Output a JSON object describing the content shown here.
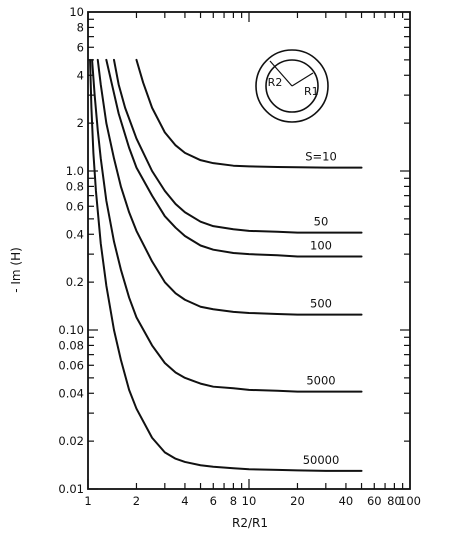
{
  "chart_data": {
    "type": "line",
    "title": "",
    "xlabel": "R2/R1",
    "ylabel": "- Im (H)",
    "x_scale": "log",
    "y_scale": "log",
    "xlim": [
      1,
      100
    ],
    "ylim": [
      0.01,
      10
    ],
    "grid": false,
    "x_ticks": [
      {
        "value": 1,
        "label": "1"
      },
      {
        "value": 2,
        "label": "2"
      },
      {
        "value": 4,
        "label": "4"
      },
      {
        "value": 6,
        "label": "6"
      },
      {
        "value": 8,
        "label": "8"
      },
      {
        "value": 10,
        "label": "10"
      },
      {
        "value": 20,
        "label": "20"
      },
      {
        "value": 40,
        "label": "40"
      },
      {
        "value": 60,
        "label": "60"
      },
      {
        "value": 80,
        "label": "80"
      },
      {
        "value": 100,
        "label": "100"
      }
    ],
    "y_ticks": [
      {
        "value": 0.01,
        "label": "0.01"
      },
      {
        "value": 0.02,
        "label": "0.02"
      },
      {
        "value": 0.04,
        "label": "0.04"
      },
      {
        "value": 0.06,
        "label": "0.06"
      },
      {
        "value": 0.08,
        "label": "0.08"
      },
      {
        "value": 0.1,
        "label": "0.10"
      },
      {
        "value": 0.2,
        "label": "0.2"
      },
      {
        "value": 0.4,
        "label": "0.4"
      },
      {
        "value": 0.6,
        "label": "0.6"
      },
      {
        "value": 0.8,
        "label": "0.8"
      },
      {
        "value": 1,
        "label": "1.0"
      },
      {
        "value": 2,
        "label": "2"
      },
      {
        "value": 4,
        "label": "4"
      },
      {
        "value": 6,
        "label": "6"
      },
      {
        "value": 8,
        "label": "8"
      },
      {
        "value": 10,
        "label": "10"
      }
    ],
    "series": [
      {
        "name": "S=10",
        "label": "S=10",
        "x": [
          2.0,
          2.2,
          2.5,
          3.0,
          3.5,
          4.0,
          5.0,
          6.0,
          8.0,
          10.0,
          15.0,
          20.0,
          30.0,
          50.0
        ],
        "y": [
          5.0,
          3.6,
          2.5,
          1.75,
          1.45,
          1.3,
          1.17,
          1.12,
          1.08,
          1.07,
          1.06,
          1.055,
          1.05,
          1.05
        ]
      },
      {
        "name": "50",
        "label": "50",
        "x": [
          1.45,
          1.55,
          1.7,
          2.0,
          2.5,
          3.0,
          3.5,
          4.0,
          5.0,
          6.0,
          8.0,
          10.0,
          15.0,
          20.0,
          30.0,
          50.0
        ],
        "y": [
          5.0,
          3.5,
          2.5,
          1.6,
          1.0,
          0.75,
          0.62,
          0.55,
          0.48,
          0.45,
          0.43,
          0.42,
          0.415,
          0.41,
          0.41,
          0.41
        ]
      },
      {
        "name": "100",
        "label": "100",
        "x": [
          1.3,
          1.4,
          1.55,
          1.8,
          2.0,
          2.5,
          3.0,
          3.5,
          4.0,
          5.0,
          6.0,
          8.0,
          10.0,
          15.0,
          20.0,
          30.0,
          50.0
        ],
        "y": [
          5.0,
          3.6,
          2.3,
          1.4,
          1.05,
          0.7,
          0.52,
          0.44,
          0.39,
          0.34,
          0.32,
          0.305,
          0.3,
          0.295,
          0.29,
          0.29,
          0.29
        ]
      },
      {
        "name": "500",
        "label": "500",
        "x": [
          1.15,
          1.2,
          1.3,
          1.45,
          1.6,
          1.8,
          2.0,
          2.5,
          3.0,
          3.5,
          4.0,
          5.0,
          6.0,
          8.0,
          10.0,
          15.0,
          20.0,
          30.0,
          50.0
        ],
        "y": [
          5.0,
          3.5,
          2.0,
          1.2,
          0.8,
          0.55,
          0.42,
          0.27,
          0.2,
          0.17,
          0.155,
          0.14,
          0.135,
          0.13,
          0.128,
          0.126,
          0.125,
          0.125,
          0.125
        ]
      },
      {
        "name": "5000",
        "label": "5000",
        "x": [
          1.06,
          1.1,
          1.15,
          1.2,
          1.3,
          1.45,
          1.6,
          1.8,
          2.0,
          2.5,
          3.0,
          3.5,
          4.0,
          5.0,
          6.0,
          8.0,
          10.0,
          15.0,
          20.0,
          30.0,
          50.0
        ],
        "y": [
          5.0,
          3.0,
          1.8,
          1.2,
          0.65,
          0.36,
          0.24,
          0.16,
          0.12,
          0.08,
          0.062,
          0.054,
          0.05,
          0.046,
          0.044,
          0.043,
          0.042,
          0.0415,
          0.041,
          0.041,
          0.041
        ]
      },
      {
        "name": "50000",
        "label": "50000",
        "x": [
          1.03,
          1.05,
          1.08,
          1.12,
          1.2,
          1.3,
          1.45,
          1.6,
          1.8,
          2.0,
          2.5,
          3.0,
          3.5,
          4.0,
          5.0,
          6.0,
          8.0,
          10.0,
          15.0,
          20.0,
          30.0,
          50.0
        ],
        "y": [
          5.0,
          2.5,
          1.3,
          0.75,
          0.35,
          0.19,
          0.1,
          0.065,
          0.042,
          0.032,
          0.021,
          0.017,
          0.0155,
          0.0148,
          0.0141,
          0.0138,
          0.0135,
          0.0133,
          0.0132,
          0.0131,
          0.013,
          0.013
        ]
      }
    ],
    "inset": {
      "outer_label": "R2",
      "inner_label": "R1"
    }
  }
}
